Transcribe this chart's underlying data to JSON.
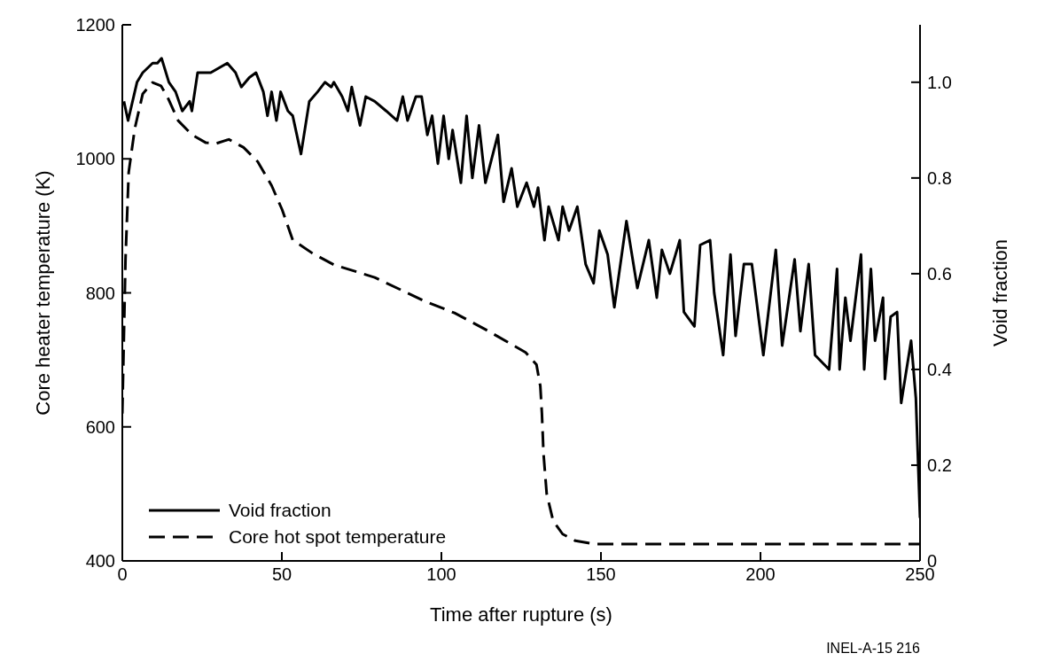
{
  "chart_data": {
    "type": "line",
    "xlabel": "Time after rupture (s)",
    "ylabel": "Core heater temperature (K)",
    "y2label": "Void fraction",
    "xlim": [
      0,
      250
    ],
    "xticks": [
      0,
      50,
      100,
      150,
      200,
      250
    ],
    "ylim": [
      400,
      1200
    ],
    "yticks": [
      400,
      600,
      800,
      1000,
      1200
    ],
    "y2lim": [
      0,
      1.12
    ],
    "y2ticks": [
      0,
      0.2,
      0.4,
      0.6,
      0.8,
      {
        "value": 1,
        "label": "1.0"
      }
    ],
    "grid": false,
    "legend": "bottom left",
    "marker": "none",
    "annotations": [
      "INEL-A-15 216"
    ],
    "series": [
      {
        "name": "Void fraction",
        "color": "#000000",
        "axis": "y2",
        "line_style": "solid",
        "x": [
          0.5,
          1.8,
          4.6,
          6.4,
          9.5,
          11,
          12.3,
          14.6,
          16.7,
          18.8,
          21.1,
          21.8,
          23.6,
          27.7,
          32.9,
          35.5,
          37.3,
          39.8,
          41.9,
          44.2,
          45.5,
          46.8,
          48.3,
          49.6,
          51.9,
          53.4,
          56,
          58.6,
          61.2,
          63.5,
          65.5,
          66.3,
          68.9,
          70.7,
          71.9,
          74.5,
          76.3,
          79.1,
          82.7,
          86.1,
          87.9,
          89.4,
          92,
          93.8,
          95.6,
          97.1,
          98.9,
          100.7,
          102.3,
          103.5,
          106.1,
          107.9,
          109.7,
          111.8,
          113.8,
          117.7,
          119.5,
          122,
          123.8,
          126.7,
          129,
          130.3,
          132.3,
          133.6,
          136.7,
          138,
          140,
          142.6,
          145.2,
          147.7,
          149.5,
          152.1,
          154.2,
          158,
          161.4,
          165,
          167.5,
          169.1,
          171.6,
          174.7,
          176,
          179.3,
          181.1,
          184.2,
          185.5,
          188.3,
          190.6,
          192.2,
          194.8,
          197.3,
          200.9,
          204.8,
          206.8,
          210.7,
          212.5,
          215.1,
          217.1,
          221.5,
          224,
          224.8,
          226.6,
          228.2,
          231.5,
          232.5,
          234.6,
          235.9,
          238.4,
          239,
          240.8,
          242.8,
          244.1,
          247.2,
          248.7,
          250
        ],
        "values": [
          0.96,
          0.92,
          1,
          1.02,
          1.04,
          1.04,
          1.05,
          1,
          0.98,
          0.94,
          0.96,
          0.94,
          1.02,
          1.02,
          1.04,
          1.02,
          0.99,
          1.01,
          1.02,
          0.98,
          0.93,
          0.98,
          0.92,
          0.98,
          0.94,
          0.93,
          0.85,
          0.96,
          0.98,
          1,
          0.99,
          1,
          0.97,
          0.94,
          0.99,
          0.91,
          0.97,
          0.96,
          0.94,
          0.92,
          0.97,
          0.92,
          0.97,
          0.97,
          0.89,
          0.93,
          0.83,
          0.93,
          0.84,
          0.9,
          0.79,
          0.93,
          0.8,
          0.91,
          0.79,
          0.89,
          0.75,
          0.82,
          0.74,
          0.79,
          0.74,
          0.78,
          0.67,
          0.74,
          0.67,
          0.74,
          0.69,
          0.74,
          0.62,
          0.58,
          0.69,
          0.64,
          0.53,
          0.71,
          0.57,
          0.67,
          0.55,
          0.65,
          0.6,
          0.67,
          0.52,
          0.49,
          0.66,
          0.67,
          0.56,
          0.43,
          0.64,
          0.47,
          0.62,
          0.62,
          0.43,
          0.65,
          0.45,
          0.63,
          0.48,
          0.62,
          0.43,
          0.4,
          0.61,
          0.4,
          0.55,
          0.46,
          0.64,
          0.4,
          0.61,
          0.46,
          0.55,
          0.38,
          0.51,
          0.52,
          0.33,
          0.46,
          0.34,
          0.09
        ]
      },
      {
        "name": "Core hot spot temperature",
        "color": "#000000",
        "line_style": "dashed",
        "x": [
          0,
          1,
          2,
          3.9,
          6.4,
          9.5,
          12.1,
          14.1,
          17.5,
          21.8,
          26.2,
          29.5,
          33.4,
          38,
          42.4,
          46.8,
          50.1,
          53.4,
          59.6,
          66.3,
          79.1,
          94.6,
          104.1,
          115.1,
          126.4,
          129.8,
          131,
          131.5,
          132,
          133,
          135,
          138,
          142,
          148,
          250
        ],
        "values": [
          620,
          850,
          980,
          1045,
          1097,
          1114,
          1109,
          1093,
          1057,
          1036,
          1024,
          1023,
          1029,
          1017,
          996,
          960,
          924,
          879,
          859,
          842,
          823,
          788,
          770,
          742,
          711,
          693,
          661,
          620,
          560,
          500,
          460,
          440,
          430,
          425,
          425
        ]
      }
    ]
  }
}
